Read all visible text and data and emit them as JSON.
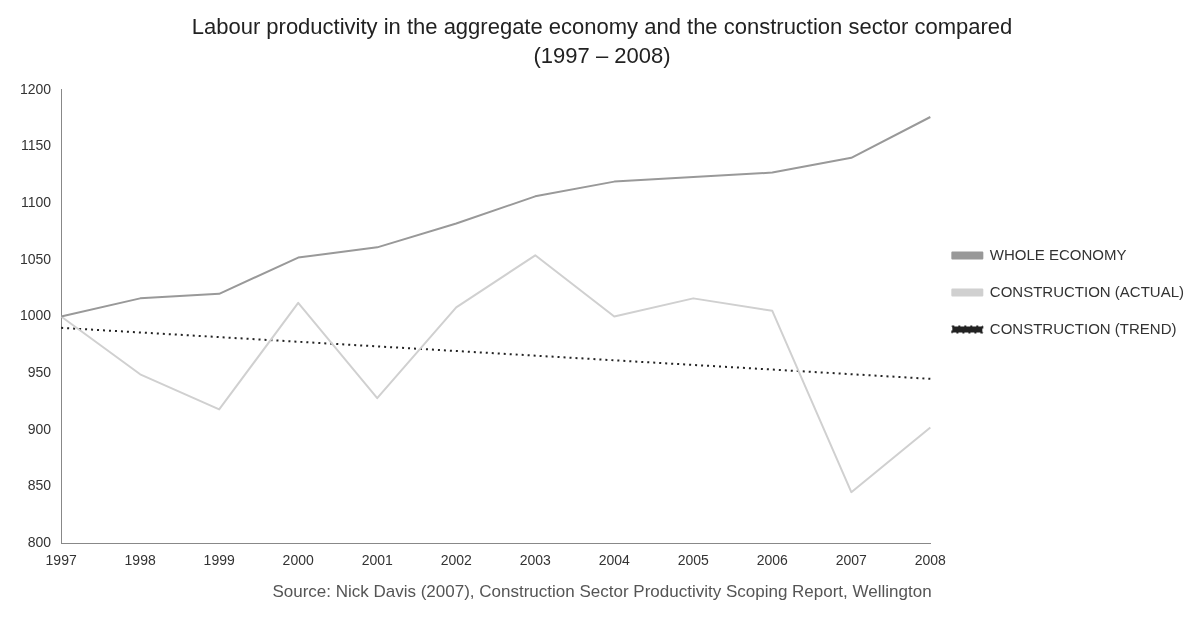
{
  "chart_data": {
    "type": "line",
    "title": "Labour productivity in the aggregate economy and the construction sector compared",
    "subtitle": "(1997 – 2008)",
    "categories": [
      "1997",
      "1998",
      "1999",
      "2000",
      "2001",
      "2002",
      "2003",
      "2004",
      "2005",
      "2006",
      "2007",
      "2008"
    ],
    "series": [
      {
        "name": "WHOLE ECONOMY",
        "color": "#999999",
        "values": [
          1000,
          1016,
          1020,
          1052,
          1061,
          1082,
          1106,
          1119,
          1123,
          1127,
          1140,
          1176
        ]
      },
      {
        "name": "CONSTRUCTION (ACTUAL)",
        "color": "#d0d0d0",
        "values": [
          1000,
          949,
          918,
          1012,
          928,
          1008,
          1054,
          1000,
          1016,
          1005,
          845,
          902
        ]
      },
      {
        "name": "CONSTRUCTION (TREND)",
        "color": "#222222",
        "line_style": "dotted",
        "values": [
          990,
          null,
          null,
          null,
          null,
          null,
          null,
          null,
          null,
          null,
          null,
          945
        ]
      }
    ],
    "ylim": [
      800,
      1200
    ],
    "yticks": [
      800,
      850,
      900,
      950,
      1000,
      1050,
      1100,
      1150,
      1200
    ],
    "grid": false,
    "legend": "right",
    "marker": "none",
    "annotations": [
      "Source: Nick Davis (2007), Construction Sector Productivity Scoping Report, Wellington"
    ]
  }
}
